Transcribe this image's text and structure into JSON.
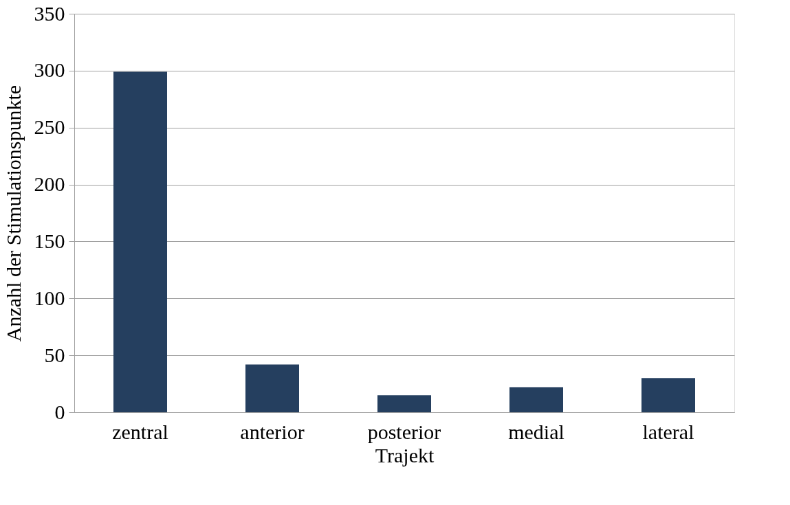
{
  "chart_data": {
    "type": "bar",
    "xlabel": "Trajekt",
    "ylabel": "Anzahl der Stimulationspunkte",
    "categories": [
      "zentral",
      "anterior",
      "posterior",
      "medial",
      "lateral"
    ],
    "values": [
      299,
      42,
      15,
      22,
      30
    ],
    "color": "#253f5f",
    "ylim": [
      0,
      350
    ],
    "yticks": [
      0,
      50,
      100,
      150,
      200,
      250,
      300,
      350
    ],
    "grid": "y",
    "legend": false
  }
}
